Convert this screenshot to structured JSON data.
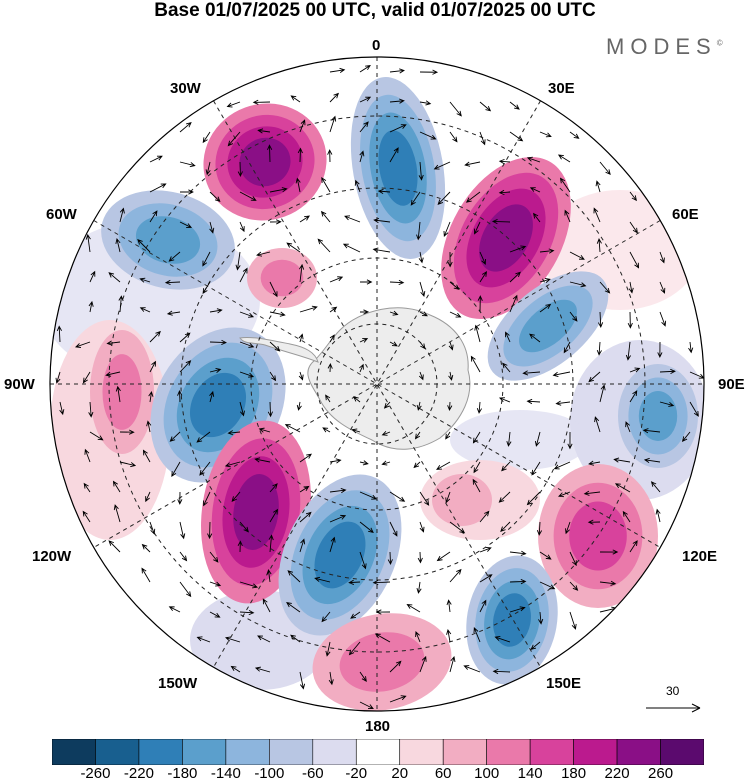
{
  "title": "Base 01/07/2025 00 UTC, valid 01/07/2025 00 UTC",
  "logo": "MODES",
  "logo_mark": "©",
  "meridian_labels": {
    "top": "0",
    "top_left": "30W",
    "top_right": "30E",
    "upper_left": "60W",
    "upper_right": "60E",
    "left": "90W",
    "right": "90E",
    "lower_left": "120W",
    "lower_right": "120E",
    "bottom_left": "150W",
    "bottom_right": "150E",
    "bottom": "180"
  },
  "reference_vector": "30",
  "colorbar": {
    "ticks": [
      "-260",
      "-220",
      "-180",
      "-140",
      "-100",
      "-60",
      "-20",
      "20",
      "60",
      "100",
      "140",
      "180",
      "220",
      "260"
    ],
    "colors": [
      "#0d3b5e",
      "#185f8f",
      "#2f7fb7",
      "#5b9fcc",
      "#8db5dd",
      "#b8c6e3",
      "#dcdcef",
      "#ffffff",
      "#f8d8df",
      "#f2adc2",
      "#ea79aa",
      "#d8429c",
      "#bb1a8e",
      "#8a0f86",
      "#5b0a6e"
    ]
  },
  "map_features": {
    "projection": "south-polar-stereographic",
    "anomalies": [
      {
        "name": "positive-center-nw",
        "sign": "positive"
      },
      {
        "name": "negative-center-n",
        "sign": "negative"
      },
      {
        "name": "positive-center-ne",
        "sign": "positive"
      },
      {
        "name": "negative-center-w",
        "sign": "negative"
      },
      {
        "name": "positive-center-small",
        "sign": "positive"
      },
      {
        "name": "negative-center-e",
        "sign": "negative"
      },
      {
        "name": "negative-center-far-e",
        "sign": "negative"
      },
      {
        "name": "positive-center-far-w",
        "sign": "positive"
      },
      {
        "name": "negative-center-mid-w",
        "sign": "negative"
      },
      {
        "name": "positive-center-sw",
        "sign": "positive"
      },
      {
        "name": "negative-center-s",
        "sign": "negative"
      },
      {
        "name": "positive-center-se",
        "sign": "positive"
      },
      {
        "name": "negative-center-bottom-e",
        "sign": "negative"
      },
      {
        "name": "positive-center-bottom",
        "sign": "positive"
      },
      {
        "name": "positive-center-small-e",
        "sign": "positive"
      }
    ]
  }
}
